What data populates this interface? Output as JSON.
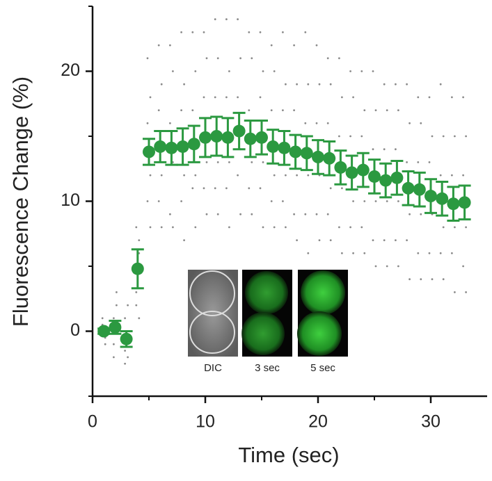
{
  "chart_data": {
    "type": "scatter",
    "x_label": "Time (sec)",
    "y_label": "Fluorescence Change (%)",
    "xlim": [
      0,
      35
    ],
    "ylim": [
      -5,
      25
    ],
    "xticks": [
      0,
      10,
      20,
      30
    ],
    "yticks": [
      0,
      10,
      20
    ],
    "xminorticks": [
      5,
      15,
      25
    ],
    "yminorticks": [
      -5,
      5,
      15,
      25
    ],
    "x": [
      1,
      2,
      3,
      4,
      5,
      6,
      7,
      8,
      9,
      10,
      11,
      12,
      13,
      14,
      15,
      16,
      17,
      18,
      19,
      20,
      21,
      22,
      23,
      24,
      25,
      26,
      27,
      28,
      29,
      30,
      31,
      32,
      33
    ],
    "series": [
      {
        "color": "#2b9940",
        "values": [
          0.0,
          0.3,
          -0.6,
          4.8,
          13.8,
          14.2,
          14.1,
          14.2,
          14.4,
          14.9,
          15.0,
          14.9,
          15.4,
          14.8,
          14.9,
          14.2,
          14.1,
          13.8,
          13.7,
          13.4,
          13.3,
          12.6,
          12.2,
          12.4,
          11.9,
          11.6,
          11.8,
          11.0,
          10.9,
          10.4,
          10.2,
          9.8,
          9.9
        ],
        "errors": [
          0.2,
          0.5,
          0.6,
          1.5,
          1.0,
          1.2,
          1.3,
          1.4,
          1.4,
          1.5,
          1.5,
          1.5,
          1.4,
          1.4,
          1.3,
          1.3,
          1.3,
          1.3,
          1.3,
          1.3,
          1.3,
          1.3,
          1.3,
          1.3,
          1.3,
          1.3,
          1.3,
          1.3,
          1.3,
          1.3,
          1.3,
          1.3,
          1.3
        ]
      }
    ],
    "individual": {
      "color": "#8a8a8a",
      "values": [
        [
          0.5,
          -0.5,
          0.2,
          -0.3,
          1,
          -1
        ],
        [
          1,
          2,
          -1,
          3,
          -2,
          0.5
        ],
        [
          1,
          -2,
          -2.5,
          2,
          -1.5,
          0
        ],
        [
          8,
          6,
          2,
          7,
          3,
          1
        ],
        [
          21,
          18,
          16,
          12,
          10,
          8
        ],
        [
          22,
          19,
          17,
          12,
          10,
          8
        ],
        [
          22,
          20,
          16,
          13,
          9,
          8
        ],
        [
          23,
          19,
          17,
          12,
          10,
          7
        ],
        [
          23,
          20,
          17,
          12,
          11,
          8
        ],
        [
          23,
          21,
          18,
          13,
          11,
          9
        ],
        [
          24,
          21,
          18,
          13,
          11,
          9
        ],
        [
          24,
          20,
          18,
          13,
          11,
          8
        ],
        [
          24,
          21,
          18,
          14,
          12,
          9
        ],
        [
          23,
          21,
          17,
          13,
          11,
          9
        ],
        [
          23,
          20,
          18,
          13,
          11,
          8
        ],
        [
          22,
          20,
          17,
          12,
          10,
          8
        ],
        [
          23,
          19,
          17,
          12,
          10,
          8
        ],
        [
          22,
          19,
          17,
          12,
          9,
          7
        ],
        [
          23,
          19,
          16,
          12,
          9,
          6
        ],
        [
          22,
          19,
          16,
          12,
          9,
          7
        ],
        [
          21,
          19,
          16,
          11,
          9,
          7
        ],
        [
          21,
          18,
          15,
          11,
          8,
          6
        ],
        [
          20,
          18,
          15,
          10,
          8,
          6
        ],
        [
          20,
          17,
          15,
          10,
          8,
          6
        ],
        [
          20,
          17,
          14,
          10,
          7,
          5
        ],
        [
          19,
          17,
          14,
          10,
          7,
          5
        ],
        [
          19,
          17,
          14,
          10,
          7,
          5
        ],
        [
          19,
          16,
          13,
          9,
          7,
          4
        ],
        [
          18,
          16,
          13,
          9,
          6,
          4
        ],
        [
          18,
          15,
          13,
          9,
          6,
          4
        ],
        [
          19,
          15,
          12,
          8,
          6,
          4
        ],
        [
          18,
          15,
          12,
          8,
          6,
          3
        ],
        [
          18,
          15,
          12,
          8,
          5,
          3
        ]
      ]
    },
    "inset_labels": [
      "DIC",
      "3 sec",
      "5 sec"
    ]
  }
}
